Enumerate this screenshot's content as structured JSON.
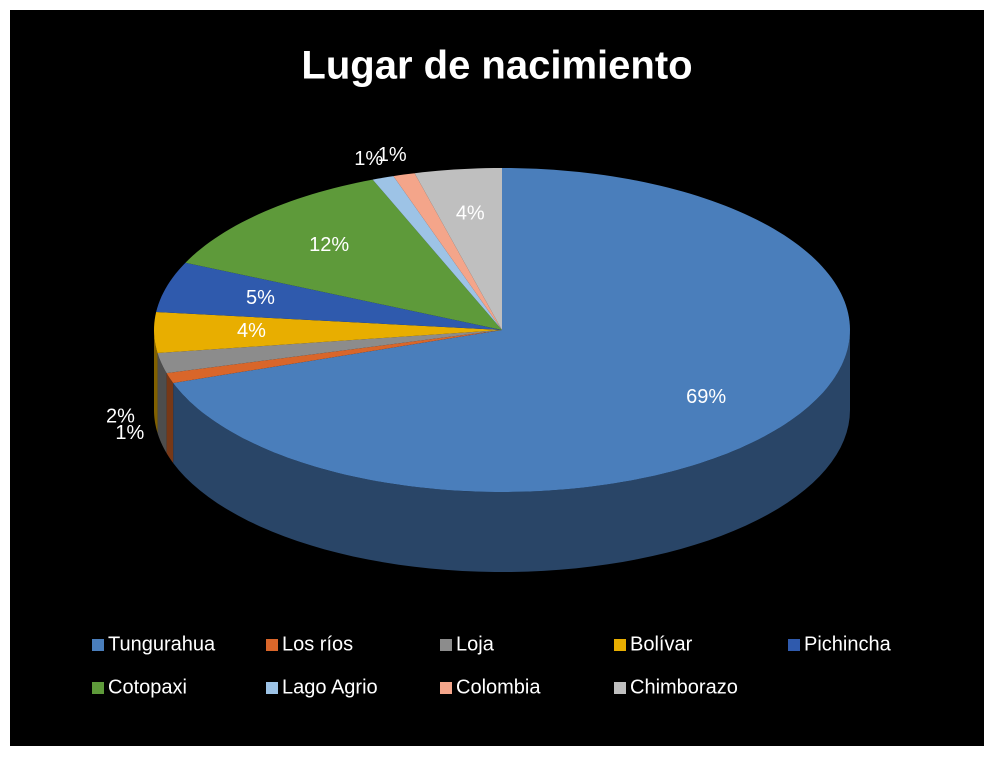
{
  "chart_data": {
    "type": "pie",
    "title": "Lugar de nacimiento",
    "categories": [
      "Tungurahua",
      "Los ríos",
      "Loja",
      "Bolívar",
      "Pichincha",
      "Cotopaxi",
      "Lago Agrio",
      "Colombia",
      "Chimborazo"
    ],
    "values": [
      69,
      1,
      2,
      4,
      5,
      12,
      1,
      1,
      4
    ],
    "value_labels": [
      "69%",
      "1%",
      "2%",
      "4%",
      "5%",
      "12%",
      "1%",
      "1%",
      "4%"
    ],
    "colors": [
      "#4a7ebb",
      "#d9662a",
      "#8c8c8c",
      "#e8ae00",
      "#2f5aad",
      "#5e9a3a",
      "#9dc3e6",
      "#f4a58a",
      "#bfbfbf"
    ],
    "legend": "bottom"
  }
}
